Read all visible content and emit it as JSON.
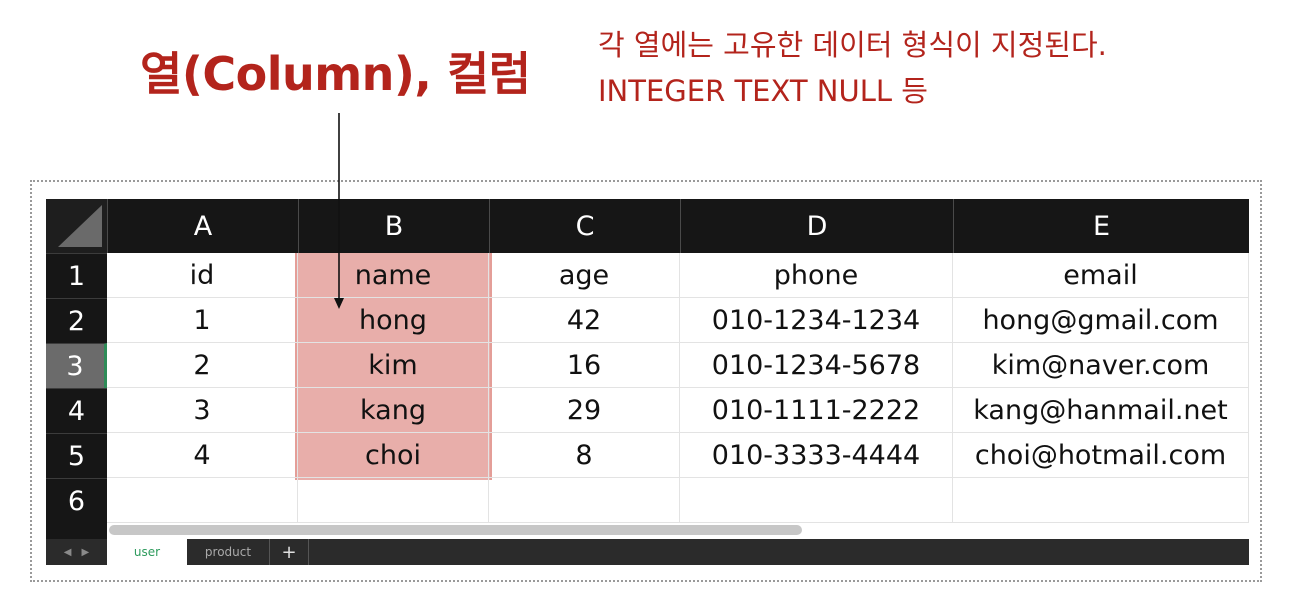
{
  "annotation": {
    "title": "열(Column), 컬럼",
    "desc_line1": "각 열에는 고유한 데이터 형식이 지정된다.",
    "desc_line2": "INTEGER TEXT NULL 등"
  },
  "sheet": {
    "columns": [
      "A",
      "B",
      "C",
      "D",
      "E"
    ],
    "rows": [
      "1",
      "2",
      "3",
      "4",
      "5",
      "6"
    ],
    "highlighted_column": "B",
    "selected_row": "3",
    "cells": [
      [
        "id",
        "name",
        "age",
        "phone",
        "email"
      ],
      [
        "1",
        "hong",
        "42",
        "010-1234-1234",
        "hong@gmail.com"
      ],
      [
        "2",
        "kim",
        "16",
        "010-1234-5678",
        "kim@naver.com"
      ],
      [
        "3",
        "kang",
        "29",
        "010-1111-2222",
        "kang@hanmail.net"
      ],
      [
        "4",
        "choi",
        "8",
        "010-3333-4444",
        "choi@hotmail.com"
      ],
      [
        "",
        "",
        "",
        "",
        ""
      ]
    ]
  },
  "tabs": {
    "sheets": [
      "user",
      "product"
    ],
    "active": "user",
    "add_label": "+"
  },
  "colors": {
    "annotation": "#b3241c",
    "highlight": "#e8aeaa",
    "header_bg": "#161616",
    "active_tab_text": "#2e9b5d"
  }
}
